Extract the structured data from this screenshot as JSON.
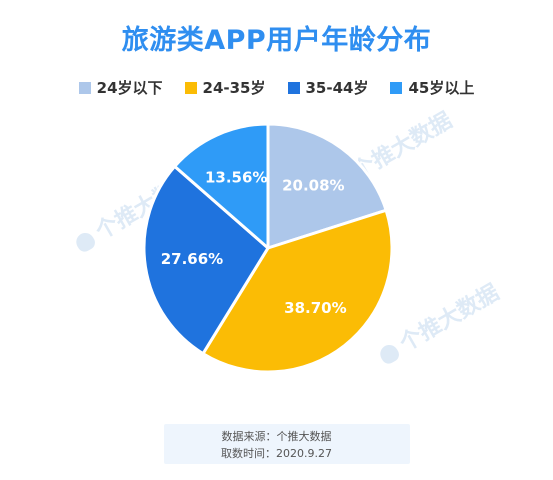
{
  "title": "旅游类APP用户年龄分布",
  "watermark": "个推大数据",
  "source": {
    "line1": "数据来源：个推大数据",
    "line2": "取数时间：2020.9.27"
  },
  "chart_data": {
    "type": "pie",
    "title": "旅游类APP用户年龄分布",
    "legend_position": "top",
    "categories": [
      "24岁以下",
      "24-35岁",
      "35-44岁",
      "45岁以上"
    ],
    "values": [
      20.08,
      38.7,
      27.66,
      13.56
    ],
    "labels": [
      "20.08%",
      "38.70%",
      "27.66%",
      "13.56%"
    ],
    "colors": [
      "#adc7ea",
      "#fbbc05",
      "#1f73de",
      "#2f9bf7"
    ],
    "start_angle_deg": 0,
    "direction": "clockwise"
  }
}
